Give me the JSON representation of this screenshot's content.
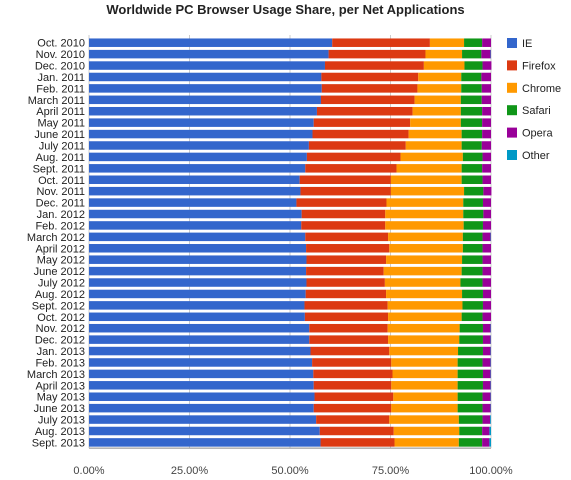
{
  "chart_data": {
    "type": "bar",
    "orientation": "horizontal",
    "stacked": "percent",
    "title": "Worldwide PC Browser Usage Share, per Net Applications",
    "xlabel": "",
    "ylabel": "",
    "xlim": [
      0,
      100
    ],
    "x_ticks": [
      "0.00%",
      "25.00%",
      "50.00%",
      "75.00%",
      "100.00%"
    ],
    "grid": "vertical",
    "legend_position": "right",
    "categories": [
      "Oct. 2010",
      "Nov. 2010",
      "Dec. 2010",
      "Jan. 2011",
      "Feb. 2011",
      "March 2011",
      "April 2011",
      "May 2011",
      "June 2011",
      "July 2011",
      "Aug. 2011",
      "Sept. 2011",
      "Oct. 2011",
      "Nov. 2011",
      "Dec. 2011",
      "Jan. 2012",
      "Feb. 2012",
      "March 2012",
      "April 2012",
      "May 2012",
      "June 2012",
      "July 2012",
      "Aug. 2012",
      "Sept. 2012",
      "Oct. 2012",
      "Nov. 2012",
      "Dec. 2012",
      "Jan. 2013",
      "Feb. 2013",
      "March 2013",
      "April 2013",
      "May 2013",
      "June 2013",
      "July 2013",
      "Aug. 2013",
      "Sept. 2013"
    ],
    "series": [
      {
        "name": "IE",
        "color": "#3366cc",
        "values": [
          60.5,
          59.6,
          58.7,
          57.8,
          57.9,
          57.7,
          56.7,
          55.9,
          55.6,
          54.7,
          54.2,
          53.8,
          52.4,
          52.6,
          51.6,
          52.9,
          52.8,
          53.8,
          54.0,
          54.1,
          54.0,
          54.1,
          53.9,
          53.6,
          53.7,
          54.8,
          54.8,
          55.1,
          55.5,
          55.8,
          55.9,
          56.1,
          55.9,
          56.5,
          57.4,
          57.6
        ]
      },
      {
        "name": "Firefox",
        "color": "#dc3912",
        "values": [
          24.3,
          24.1,
          24.6,
          24.1,
          23.8,
          23.3,
          23.8,
          24.0,
          23.9,
          24.1,
          23.3,
          22.7,
          22.7,
          22.5,
          22.4,
          20.8,
          20.9,
          20.6,
          20.7,
          19.8,
          19.3,
          19.5,
          20.0,
          20.7,
          20.7,
          19.5,
          19.6,
          19.6,
          19.7,
          19.7,
          19.3,
          19.6,
          19.3,
          18.2,
          18.4,
          18.4
        ]
      },
      {
        "name": "Chrome",
        "color": "#ff9900",
        "values": [
          8.5,
          9.1,
          10.1,
          10.7,
          10.9,
          11.5,
          12.0,
          12.6,
          13.2,
          13.9,
          15.5,
          16.2,
          17.6,
          18.2,
          19.1,
          19.4,
          19.5,
          18.6,
          18.3,
          18.9,
          19.4,
          18.8,
          18.9,
          18.6,
          18.3,
          17.9,
          17.7,
          17.1,
          16.5,
          16.2,
          16.5,
          16.0,
          16.5,
          17.3,
          16.3,
          16.0
        ]
      },
      {
        "name": "Safari",
        "color": "#109618",
        "values": [
          4.5,
          4.8,
          4.5,
          5.0,
          5.1,
          5.2,
          5.3,
          5.3,
          5.1,
          5.0,
          4.9,
          5.1,
          5.2,
          4.8,
          4.9,
          5.0,
          4.8,
          4.9,
          4.9,
          5.1,
          5.2,
          5.5,
          5.2,
          5.1,
          5.2,
          5.8,
          5.9,
          6.2,
          6.2,
          6.3,
          6.3,
          6.2,
          6.2,
          5.9,
          5.7,
          5.8
        ]
      },
      {
        "name": "Opera",
        "color": "#990099",
        "values": [
          2.2,
          2.3,
          2.2,
          2.4,
          2.3,
          2.3,
          2.2,
          2.2,
          2.2,
          2.3,
          2.1,
          2.2,
          2.1,
          2.0,
          2.0,
          1.9,
          2.0,
          2.0,
          2.1,
          2.1,
          2.1,
          2.1,
          2.0,
          2.0,
          2.1,
          1.9,
          1.9,
          1.9,
          2.0,
          1.9,
          1.9,
          2.0,
          2.0,
          1.9,
          1.8,
          1.8
        ]
      },
      {
        "name": "Other",
        "color": "#0099c6",
        "values": [
          0.0,
          0.1,
          0.0,
          0.0,
          0.0,
          0.0,
          0.0,
          0.0,
          0.0,
          0.0,
          0.0,
          0.0,
          0.0,
          0.0,
          0.0,
          0.0,
          0.0,
          0.1,
          0.0,
          0.0,
          0.0,
          0.0,
          0.0,
          0.0,
          0.0,
          0.1,
          0.1,
          0.1,
          0.1,
          0.1,
          0.1,
          0.1,
          0.1,
          0.2,
          0.4,
          0.4
        ]
      }
    ]
  }
}
